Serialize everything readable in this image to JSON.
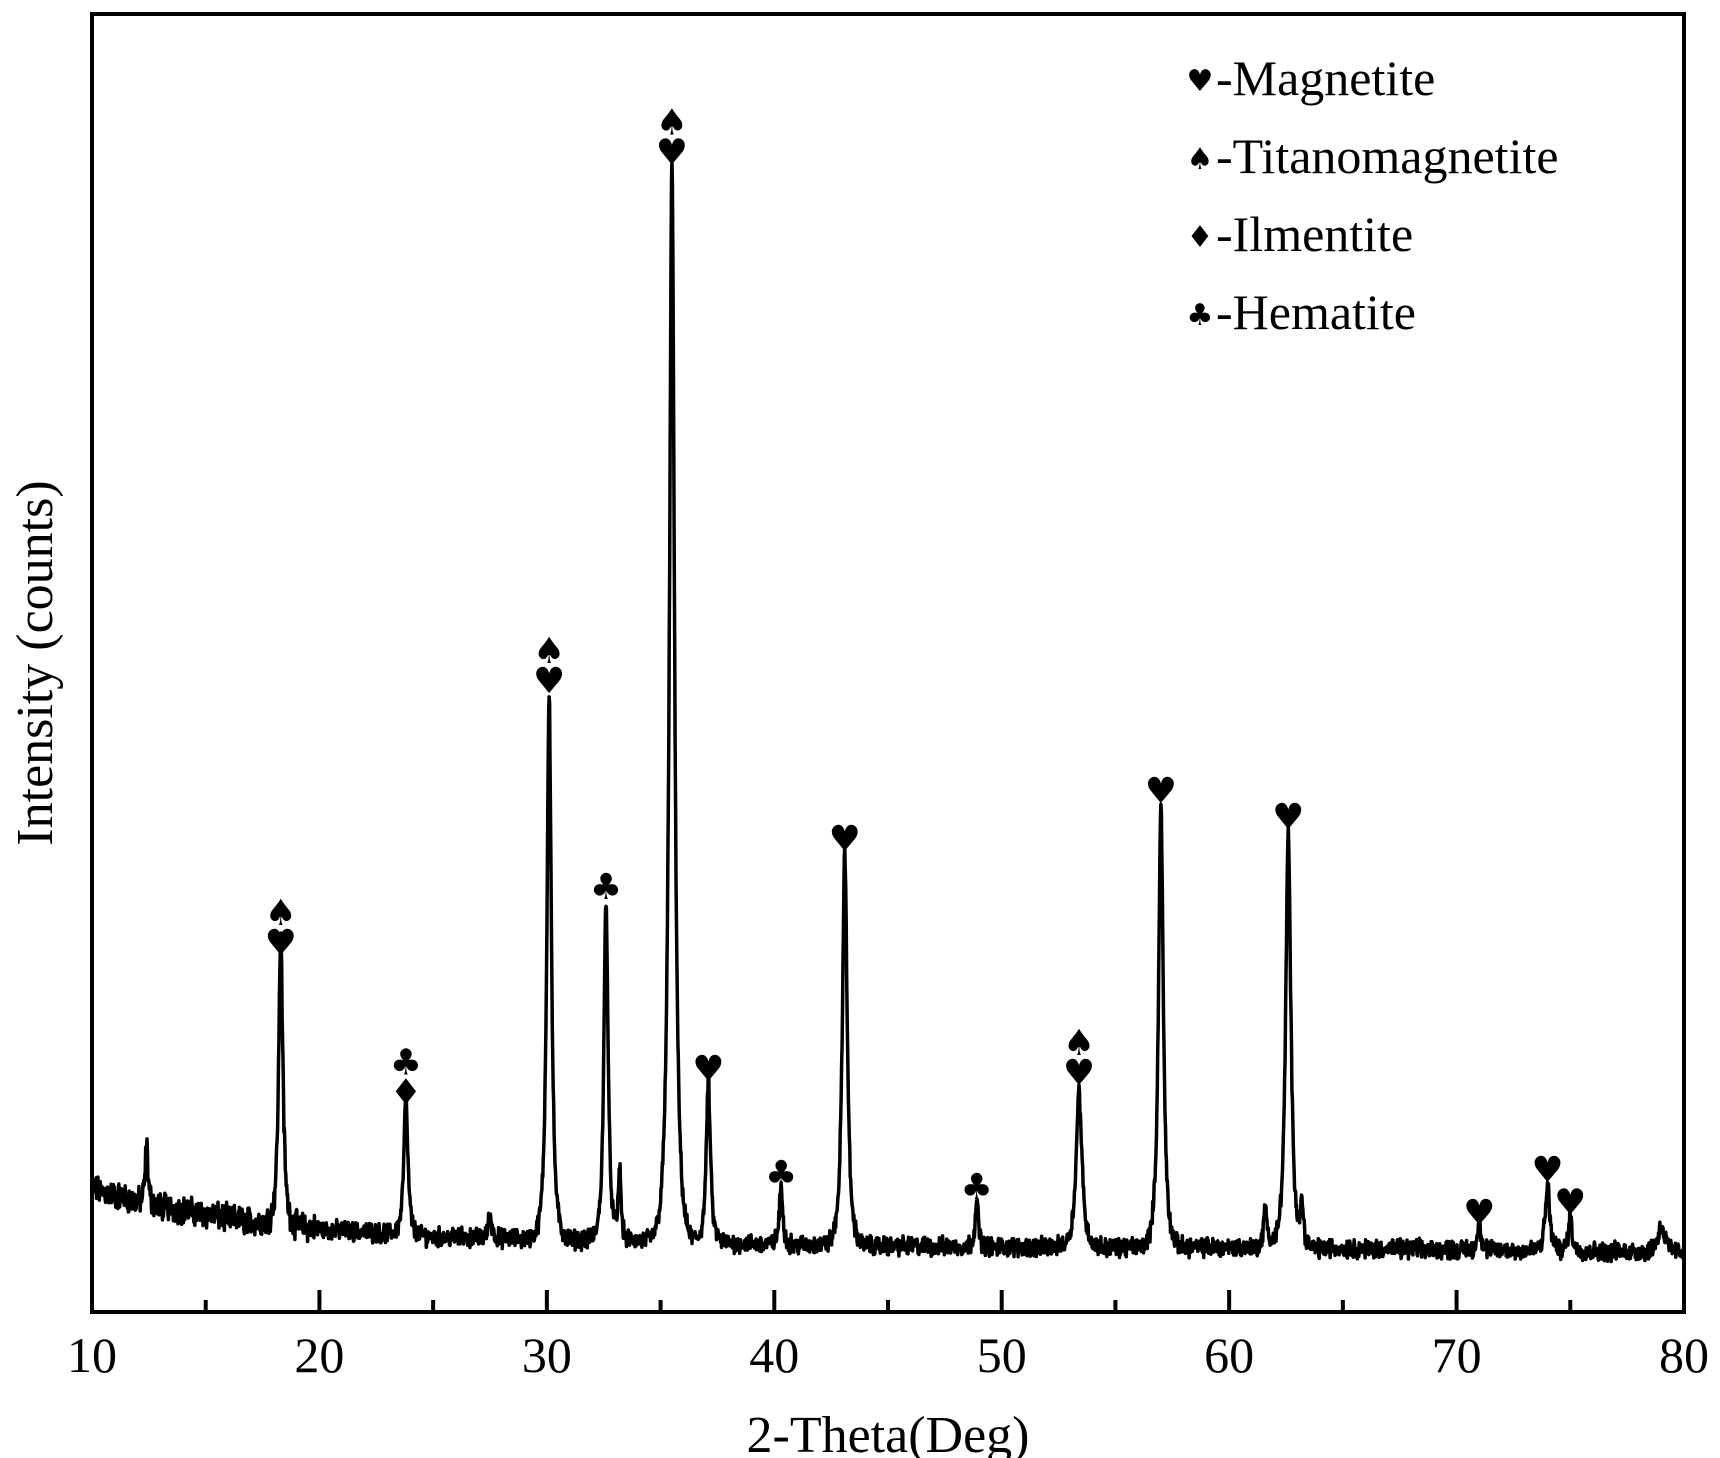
{
  "chart_data": {
    "type": "line",
    "title": "",
    "xlabel": "2-Theta(Deg)",
    "ylabel": "Intensity (counts)",
    "xlim": [
      10,
      80
    ],
    "ylim": [
      0,
      1000
    ],
    "x_ticks": [
      "10",
      "20",
      "30",
      "40",
      "50",
      "60",
      "70",
      "80"
    ],
    "x_minor_ticks": [
      15,
      25,
      35,
      45,
      55,
      65,
      75
    ],
    "y_ticks_shown": false,
    "grid": false,
    "legend_position": "top-right",
    "line_color": "#000000",
    "legend": [
      {
        "symbol": "♥",
        "icon": "heart-icon",
        "label": "-Magnetite"
      },
      {
        "symbol": "♠",
        "icon": "spade-icon",
        "label": "-Titanomagnetite"
      },
      {
        "symbol": "♦",
        "icon": "diamond-icon",
        "label": "-Ilmentite"
      },
      {
        "symbol": "♣",
        "icon": "club-icon",
        "label": "-Hematite"
      }
    ],
    "baseline": [
      {
        "x": 10,
        "y": 95
      },
      {
        "x": 12,
        "y": 85
      },
      {
        "x": 16,
        "y": 72
      },
      {
        "x": 20,
        "y": 64
      },
      {
        "x": 25,
        "y": 58
      },
      {
        "x": 30,
        "y": 56
      },
      {
        "x": 35,
        "y": 55
      },
      {
        "x": 40,
        "y": 52
      },
      {
        "x": 50,
        "y": 50
      },
      {
        "x": 60,
        "y": 50
      },
      {
        "x": 70,
        "y": 48
      },
      {
        "x": 80,
        "y": 46
      }
    ],
    "peaks": [
      {
        "x": 12.4,
        "height": 45,
        "width": 0.08
      },
      {
        "x": 18.3,
        "height": 225,
        "width": 0.12
      },
      {
        "x": 23.8,
        "height": 105,
        "width": 0.12
      },
      {
        "x": 27.5,
        "height": 18,
        "width": 0.1
      },
      {
        "x": 30.1,
        "height": 422,
        "width": 0.13
      },
      {
        "x": 32.6,
        "height": 265,
        "width": 0.12
      },
      {
        "x": 33.2,
        "height": 55,
        "width": 0.08
      },
      {
        "x": 35.5,
        "height": 830,
        "width": 0.15
      },
      {
        "x": 37.1,
        "height": 125,
        "width": 0.12
      },
      {
        "x": 40.3,
        "height": 45,
        "width": 0.1
      },
      {
        "x": 43.1,
        "height": 305,
        "width": 0.14
      },
      {
        "x": 48.9,
        "height": 35,
        "width": 0.1
      },
      {
        "x": 53.4,
        "height": 120,
        "width": 0.17
      },
      {
        "x": 57.0,
        "height": 340,
        "width": 0.14
      },
      {
        "x": 61.6,
        "height": 32,
        "width": 0.1
      },
      {
        "x": 62.6,
        "height": 320,
        "width": 0.15
      },
      {
        "x": 63.2,
        "height": 30,
        "width": 0.1
      },
      {
        "x": 71.0,
        "height": 22,
        "width": 0.1
      },
      {
        "x": 74.0,
        "height": 50,
        "width": 0.13
      },
      {
        "x": 75.0,
        "height": 28,
        "width": 0.1
      },
      {
        "x": 79.0,
        "height": 20,
        "width": 0.2
      }
    ],
    "peak_annotations": [
      {
        "x": 18.3,
        "y": 275,
        "symbols": [
          "♠",
          "♥"
        ],
        "icons": [
          "spade-icon",
          "heart-icon"
        ]
      },
      {
        "x": 23.8,
        "y": 160,
        "symbols": [
          "♣",
          "♦"
        ],
        "icons": [
          "club-icon",
          "diamond-icon"
        ]
      },
      {
        "x": 30.1,
        "y": 477,
        "symbols": [
          "♠",
          "♥"
        ],
        "icons": [
          "spade-icon",
          "heart-icon"
        ]
      },
      {
        "x": 32.6,
        "y": 318,
        "symbols": [
          "♣"
        ],
        "icons": [
          "club-icon"
        ]
      },
      {
        "x": 35.5,
        "y": 884,
        "symbols": [
          "♠",
          "♥"
        ],
        "icons": [
          "spade-icon",
          "heart-icon"
        ]
      },
      {
        "x": 37.1,
        "y": 178,
        "symbols": [
          "♥"
        ],
        "icons": [
          "heart-icon"
        ]
      },
      {
        "x": 40.3,
        "y": 97,
        "symbols": [
          "♣"
        ],
        "icons": [
          "club-icon"
        ]
      },
      {
        "x": 43.1,
        "y": 355,
        "symbols": [
          "♥"
        ],
        "icons": [
          "heart-icon"
        ]
      },
      {
        "x": 48.9,
        "y": 87,
        "symbols": [
          "♣"
        ],
        "icons": [
          "club-icon"
        ]
      },
      {
        "x": 53.4,
        "y": 175,
        "symbols": [
          "♠",
          "♥"
        ],
        "icons": [
          "spade-icon",
          "heart-icon"
        ]
      },
      {
        "x": 57.0,
        "y": 392,
        "symbols": [
          "♥"
        ],
        "icons": [
          "heart-icon"
        ]
      },
      {
        "x": 62.6,
        "y": 372,
        "symbols": [
          "♥"
        ],
        "icons": [
          "heart-icon"
        ]
      },
      {
        "x": 71.0,
        "y": 67,
        "symbols": [
          "♥"
        ],
        "icons": [
          "heart-icon"
        ]
      },
      {
        "x": 74.0,
        "y": 100,
        "symbols": [
          "♥"
        ],
        "icons": [
          "heart-icon"
        ]
      },
      {
        "x": 75.0,
        "y": 75,
        "symbols": [
          "♥"
        ],
        "icons": [
          "heart-icon"
        ]
      }
    ]
  }
}
